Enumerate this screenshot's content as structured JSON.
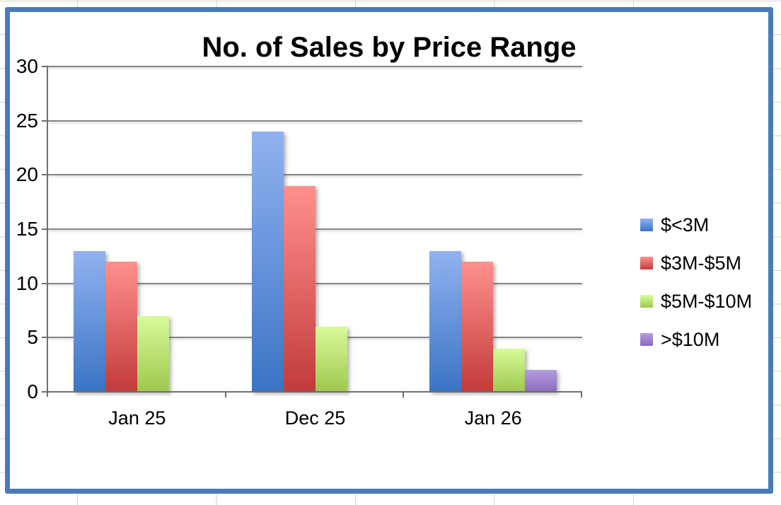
{
  "chart_data": {
    "type": "bar",
    "title": "No. of Sales by Price Range",
    "categories": [
      "Jan 25",
      "Dec 25",
      "Jan 26"
    ],
    "series": [
      {
        "name": "$<3M",
        "values": [
          13,
          24,
          13
        ],
        "color_top": "#91B2F0",
        "color_bottom": "#3B74C4"
      },
      {
        "name": "$3M-$5M",
        "values": [
          12,
          19,
          12
        ],
        "color_top": "#FF908D",
        "color_bottom": "#C23B3B"
      },
      {
        "name": "$5M-$10M",
        "values": [
          7,
          6,
          4
        ],
        "color_top": "#D8FA9A",
        "color_bottom": "#9EC84E"
      },
      {
        "name": ">$10M",
        "values": [
          0,
          0,
          2
        ],
        "color_top": "#B59EDE",
        "color_bottom": "#8C6ABC"
      }
    ],
    "xlabel": "",
    "ylabel": "",
    "ylim": [
      0,
      30
    ],
    "y_ticks": [
      0,
      5,
      10,
      15,
      20,
      25,
      30
    ],
    "grid": true,
    "legend_position": "right",
    "frame_color": "#4a7ab8",
    "gridline_color": "#848484",
    "axis_color": "#6e6e6e"
  }
}
